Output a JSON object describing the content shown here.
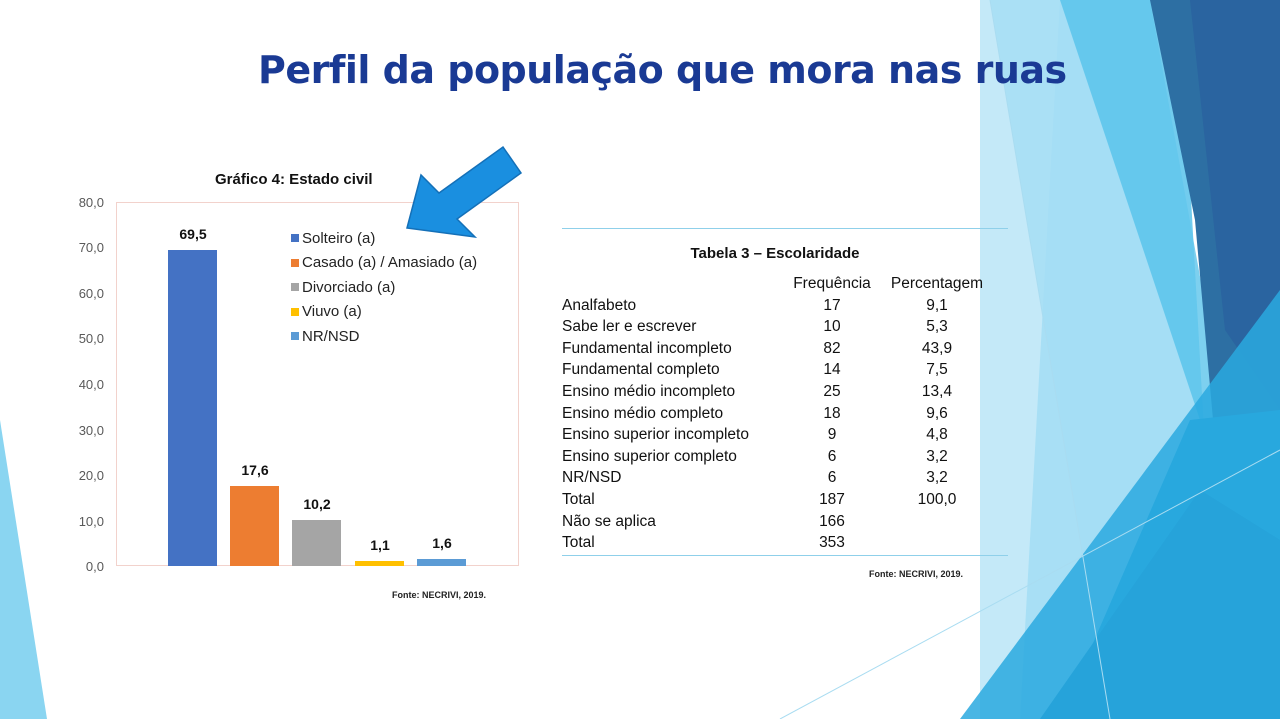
{
  "slide": {
    "title": "Perfil da população que mora nas ruas"
  },
  "chart_data": [
    {
      "type": "bar",
      "title": "Gráfico 4: Estado civil",
      "categories": [
        "Solteiro (a)",
        "Casado (a) / Amasiado (a)",
        "Divorciado (a)",
        "Viuvo (a)",
        "NR/NSD"
      ],
      "values": [
        69.5,
        17.6,
        10.2,
        1.1,
        1.6
      ],
      "value_labels": [
        "69,5",
        "17,6",
        "10,2",
        "1,1",
        "1,6"
      ],
      "colors": [
        "#4472c4",
        "#ed7d31",
        "#a5a5a5",
        "#ffc000",
        "#5b9bd5"
      ],
      "xlabel": "",
      "ylabel": "",
      "ylim": [
        0,
        80
      ],
      "yticks": [
        "80,0",
        "70,0",
        "60,0",
        "50,0",
        "40,0",
        "30,0",
        "20,0",
        "10,0",
        "0,0"
      ],
      "legend_position": "upper-right inside",
      "grid": false,
      "source": "Fonte: NECRIVI,  2019."
    },
    {
      "type": "table",
      "title": "Tabela 3 – Escolaridade",
      "columns": [
        "",
        "Frequência",
        "Percentagem"
      ],
      "rows": [
        [
          "Analfabeto",
          "17",
          "9,1"
        ],
        [
          "Sabe ler e escrever",
          "10",
          "5,3"
        ],
        [
          "Fundamental  incompleto",
          "82",
          "43,9"
        ],
        [
          "Fundamental  completo",
          "14",
          "7,5"
        ],
        [
          "Ensino médio  incompleto",
          "25",
          "13,4"
        ],
        [
          "Ensino médio  completo",
          "18",
          "9,6"
        ],
        [
          "Ensino superior incompleto",
          "9",
          "4,8"
        ],
        [
          "Ensino superior completo",
          "6",
          "3,2"
        ],
        [
          "NR/NSD",
          "6",
          "3,2"
        ],
        [
          "Total",
          "187",
          "100,0"
        ],
        [
          "Não se aplica",
          "166",
          ""
        ],
        [
          "Total",
          "353",
          ""
        ]
      ],
      "source": "Fonte: NECRIVI,  2019."
    }
  ],
  "annotation": {
    "arrow_icon": "arrow-pointing-down-left",
    "arrow_color": "#1a8fe0"
  }
}
